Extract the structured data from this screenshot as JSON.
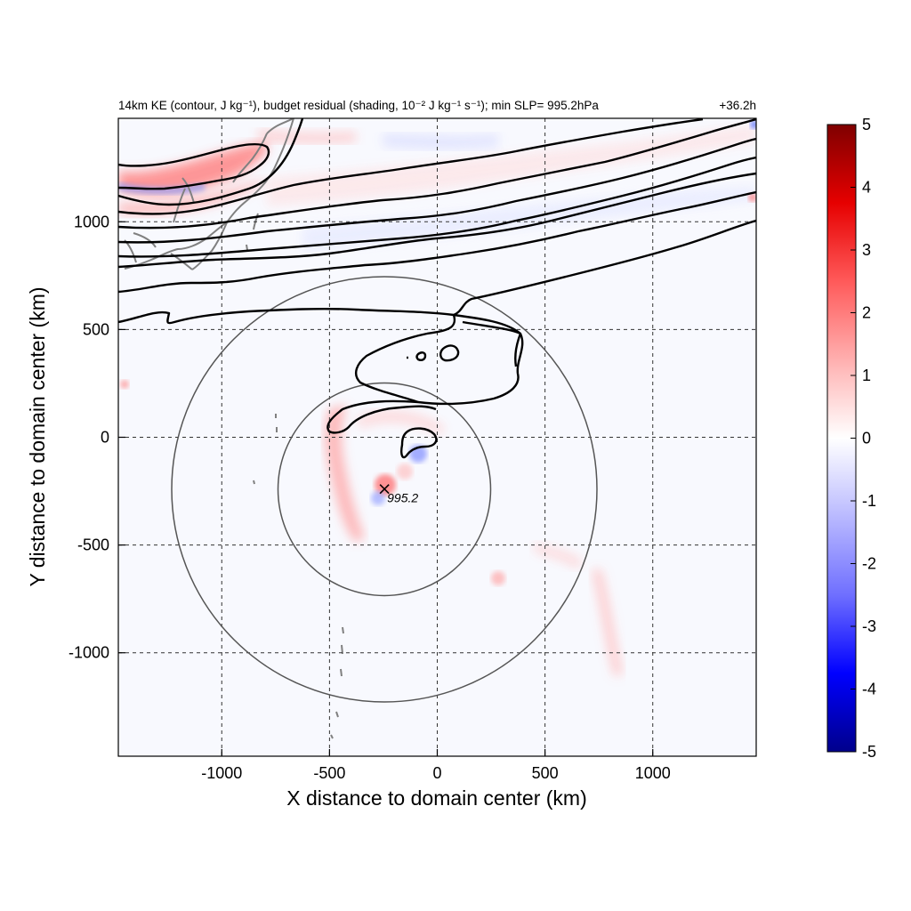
{
  "title_left": "14km KE (contour, J kg⁻¹), budget residual (shading, 10⁻² J kg⁻¹ s⁻¹); min SLP= 995.2hPa",
  "title_right": "+36.2h",
  "x_axis": {
    "title": "X distance to domain center (km)",
    "range": [
      -1480,
      1480
    ],
    "ticks": [
      {
        "value": -1000,
        "label": "-1000"
      },
      {
        "value": -500,
        "label": "-500"
      },
      {
        "value": 0,
        "label": "0"
      },
      {
        "value": 500,
        "label": "500"
      },
      {
        "value": 1000,
        "label": "1000"
      }
    ]
  },
  "y_axis": {
    "title": "Y distance to domain center (km)",
    "range": [
      -1480,
      1480
    ],
    "ticks": [
      {
        "value": 1000,
        "label": "1000"
      },
      {
        "value": 500,
        "label": "500"
      },
      {
        "value": 0,
        "label": "0"
      },
      {
        "value": -500,
        "label": "-500"
      },
      {
        "value": -1000,
        "label": "-1000"
      }
    ]
  },
  "gridlines": "dashed",
  "colorbar": {
    "range": [
      -5,
      5
    ],
    "colors": [
      "#00008b",
      "#0000ff",
      "#6f6fff",
      "#c8c8ff",
      "#ffffff",
      "#ffc0c0",
      "#ff5a5a",
      "#e60000",
      "#7f0000"
    ],
    "ticks": [
      {
        "value": 5,
        "label": "5"
      },
      {
        "value": 4,
        "label": "4"
      },
      {
        "value": 3,
        "label": "3"
      },
      {
        "value": 2,
        "label": "2"
      },
      {
        "value": 1,
        "label": "1"
      },
      {
        "value": 0,
        "label": "0"
      },
      {
        "value": -1,
        "label": "-1"
      },
      {
        "value": -2,
        "label": "-2"
      },
      {
        "value": -3,
        "label": "-3"
      },
      {
        "value": -4,
        "label": "-4"
      },
      {
        "value": -5,
        "label": "-5"
      }
    ]
  },
  "storm_center": {
    "x": -245,
    "y": -240,
    "label": "995.2"
  },
  "range_circles_km": [
    500,
    1000
  ],
  "contour_color": "#000000",
  "coastline_color": "#808080"
}
